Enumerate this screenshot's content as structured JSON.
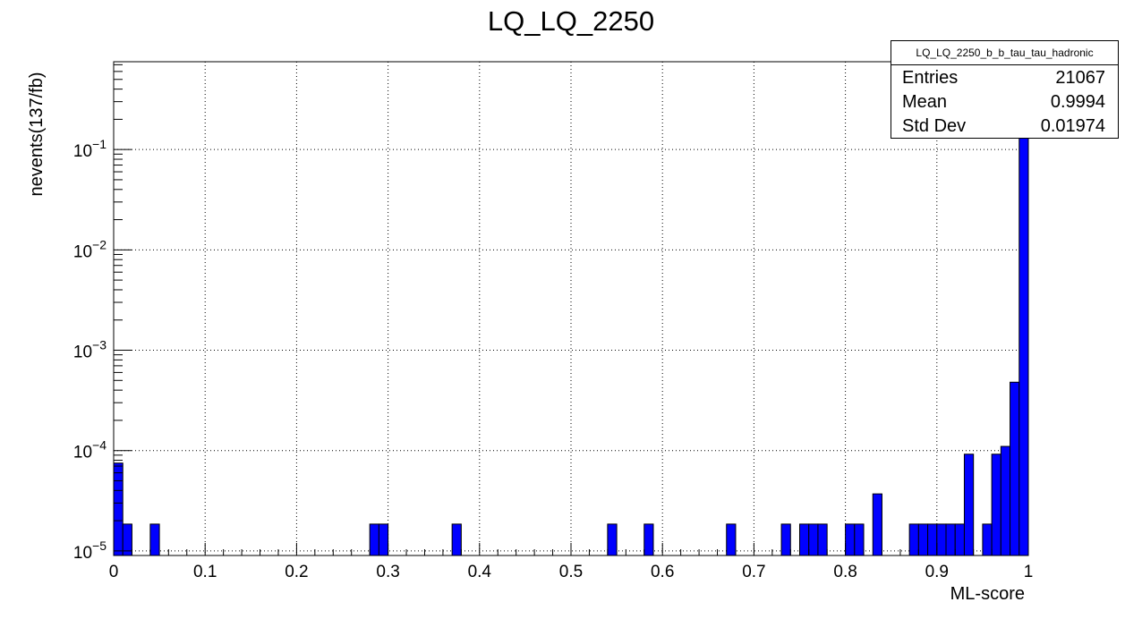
{
  "chart_data": {
    "type": "bar",
    "title": "LQ_LQ_2250",
    "xlabel": "ML-score",
    "ylabel": "nevents(137/fb)",
    "xlim": [
      0,
      1
    ],
    "ylim": [
      9e-06,
      0.75
    ],
    "y_scale": "log",
    "grid": true,
    "bar_color": "#0000ff",
    "x_ticks": [
      "0",
      "0.1",
      "0.2",
      "0.3",
      "0.4",
      "0.5",
      "0.6",
      "0.7",
      "0.8",
      "0.9",
      "1"
    ],
    "y_ticks": [
      {
        "base": "10",
        "exp": "−5"
      },
      {
        "base": "10",
        "exp": "−4"
      },
      {
        "base": "10",
        "exp": "−3"
      },
      {
        "base": "10",
        "exp": "−2"
      },
      {
        "base": "10",
        "exp": "−1"
      }
    ],
    "bin_width": 0.01,
    "bins": [
      {
        "x": 0.0,
        "y": 7.5e-05
      },
      {
        "x": 0.01,
        "y": 1.85e-05
      },
      {
        "x": 0.04,
        "y": 1.85e-05
      },
      {
        "x": 0.28,
        "y": 1.85e-05
      },
      {
        "x": 0.29,
        "y": 1.85e-05
      },
      {
        "x": 0.37,
        "y": 1.85e-05
      },
      {
        "x": 0.54,
        "y": 1.85e-05
      },
      {
        "x": 0.58,
        "y": 1.85e-05
      },
      {
        "x": 0.67,
        "y": 1.85e-05
      },
      {
        "x": 0.73,
        "y": 1.85e-05
      },
      {
        "x": 0.75,
        "y": 1.85e-05
      },
      {
        "x": 0.76,
        "y": 1.85e-05
      },
      {
        "x": 0.77,
        "y": 1.85e-05
      },
      {
        "x": 0.8,
        "y": 1.85e-05
      },
      {
        "x": 0.81,
        "y": 1.85e-05
      },
      {
        "x": 0.83,
        "y": 3.7e-05
      },
      {
        "x": 0.87,
        "y": 1.85e-05
      },
      {
        "x": 0.88,
        "y": 1.85e-05
      },
      {
        "x": 0.89,
        "y": 1.85e-05
      },
      {
        "x": 0.9,
        "y": 1.85e-05
      },
      {
        "x": 0.91,
        "y": 1.85e-05
      },
      {
        "x": 0.92,
        "y": 1.85e-05
      },
      {
        "x": 0.93,
        "y": 9.2e-05
      },
      {
        "x": 0.95,
        "y": 1.85e-05
      },
      {
        "x": 0.96,
        "y": 9.2e-05
      },
      {
        "x": 0.97,
        "y": 0.00011
      },
      {
        "x": 0.98,
        "y": 0.00048
      },
      {
        "x": 0.99,
        "y": 0.75
      }
    ]
  },
  "stats": {
    "title": "LQ_LQ_2250_b_b_tau_tau_hadronic",
    "rows": [
      {
        "label": "Entries",
        "value": "21067"
      },
      {
        "label": "Mean",
        "value": "0.9994"
      },
      {
        "label": "Std Dev",
        "value": "0.01974"
      }
    ]
  }
}
